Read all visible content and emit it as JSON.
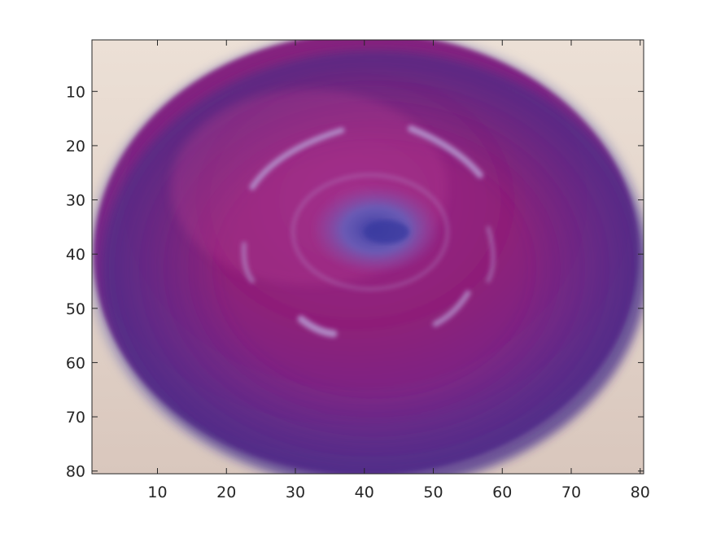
{
  "image": {
    "subject": "red onion, top view",
    "colormap_note": "RGB photograph",
    "colors": {
      "background_top_left": "#e7d7ce",
      "background_bottom": "#d9c7bd",
      "onion_core": "#8e1f78",
      "onion_edge": "#5d2f8e",
      "onion_shadow": "#4b2d86",
      "rings": "#b69ad2",
      "center_spot": "#5b47a8",
      "axes_frame": "#262626"
    }
  },
  "axes": {
    "x_range": [
      0.5,
      80.5
    ],
    "y_range": [
      0.5,
      80.5
    ],
    "y_reversed": true,
    "x_ticks": [
      10,
      20,
      30,
      40,
      50,
      60,
      70,
      80
    ],
    "y_ticks": [
      10,
      20,
      30,
      40,
      50,
      60,
      70,
      80
    ],
    "x_tick_labels": [
      "10",
      "20",
      "30",
      "40",
      "50",
      "60",
      "70",
      "80"
    ],
    "y_tick_labels": [
      "10",
      "20",
      "30",
      "40",
      "50",
      "60",
      "70",
      "80"
    ]
  }
}
